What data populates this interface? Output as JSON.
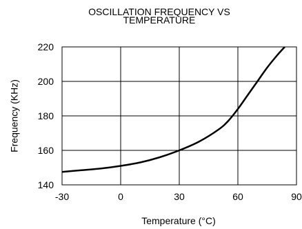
{
  "chart_data": {
    "type": "line",
    "title": [
      "OSCILLATION FREQUENCY VS",
      "TEMPERATURE"
    ],
    "xlabel": "Temperature (°C)",
    "ylabel": "Frequency (KHz)",
    "xlim": [
      -30,
      90
    ],
    "ylim": [
      140,
      220
    ],
    "xticks": [
      -30,
      0,
      30,
      60,
      90
    ],
    "yticks": [
      140,
      160,
      180,
      200,
      220
    ],
    "grid": true,
    "line_color": "#000000",
    "series": [
      {
        "x": [
          -30,
          -20,
          -10,
          0,
          10,
          20,
          30,
          40,
          50,
          55,
          60,
          65,
          70,
          75,
          80,
          84
        ],
        "y": [
          147.5,
          148.5,
          149.5,
          151,
          153,
          156,
          160,
          165,
          172,
          177,
          184,
          192,
          200,
          208,
          215,
          220
        ]
      }
    ]
  }
}
